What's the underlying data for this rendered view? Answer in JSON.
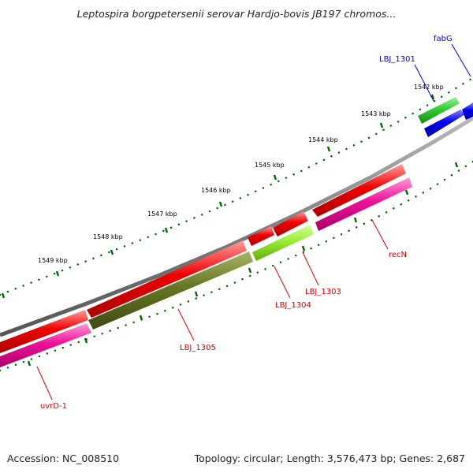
{
  "title": "Leptospira borgpetersenii serovar Hardjo-bovis JB197 chromos...",
  "footer": {
    "accession": "Accession: NC_008510",
    "summary": "Topology: circular; Length: 3,576,473 bp; Genes: 2,687"
  },
  "ticks": [
    {
      "label": "1542 kbp"
    },
    {
      "label": "1543 kbp"
    },
    {
      "label": "1544 kbp"
    },
    {
      "label": "1545 kbp"
    },
    {
      "label": "1546 kbp"
    },
    {
      "label": "1547 kbp"
    },
    {
      "label": "1548 kbp"
    },
    {
      "label": "1549 kbp"
    }
  ],
  "genes": [
    {
      "name": "fabG",
      "track": "forward-cds",
      "color": "#0000ff"
    },
    {
      "name": "LBJ_1301",
      "track": "forward-cds",
      "color": "#0000ff"
    },
    {
      "name": "recN",
      "track": "reverse",
      "color": "#dd0000"
    },
    {
      "name": "LBJ_1303",
      "track": "reverse",
      "color": "#dd0000"
    },
    {
      "name": "LBJ_1304",
      "track": "reverse",
      "color": "#dd0000"
    },
    {
      "name": "LBJ_1305",
      "track": "reverse",
      "color": "#dd0000"
    },
    {
      "name": "uvrD-1",
      "track": "reverse",
      "color": "#dd0000"
    }
  ],
  "colors": {
    "backbone": "#808080",
    "gene_red": "#ee0000",
    "cds_magenta": "#ee1199",
    "cog_green": "#33cc33",
    "cog_blue": "#0000ee",
    "cog_olive": "#667722",
    "cog_lime": "#99ee33",
    "tick_green": "#006600",
    "label_red": "#dd0000",
    "label_blue": "#0000dd"
  }
}
